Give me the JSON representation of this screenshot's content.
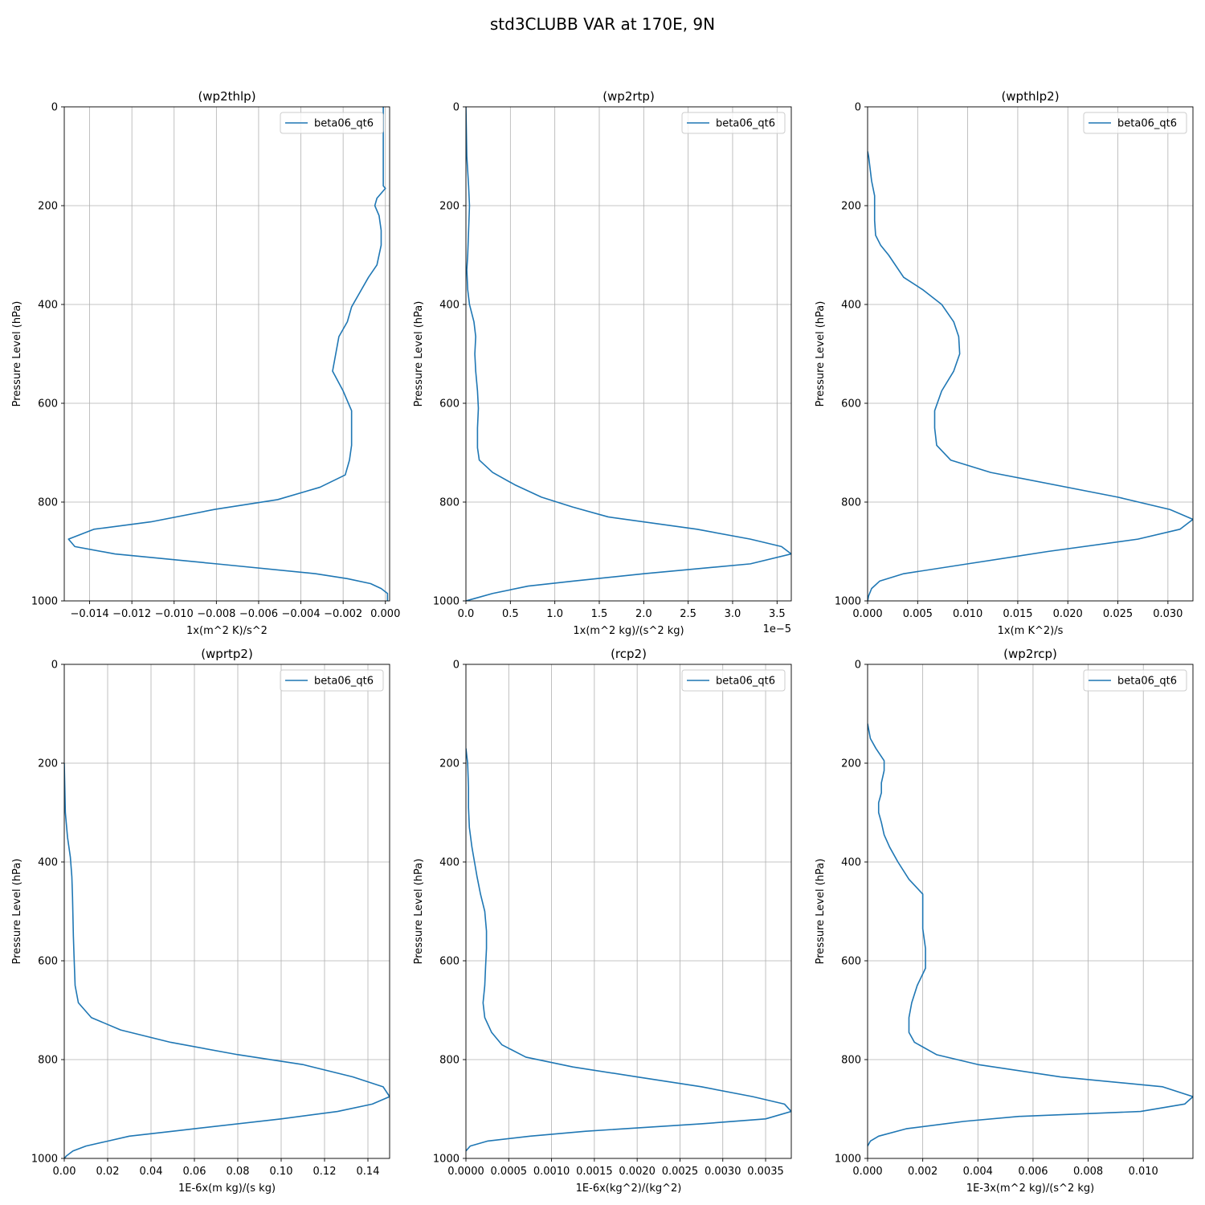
{
  "figure": {
    "title": "std3CLUBB VAR at 170E, 9N",
    "series_color": "#1f77b4"
  },
  "chart_data": [
    {
      "type": "line",
      "title": "(wp2thlp)",
      "xlabel": "1x(m^2 K)/s^2",
      "ylabel": "Pressure Level (hPa)",
      "xlim": [
        -0.0152,
        0.0002
      ],
      "ylim": [
        1000,
        0
      ],
      "y_inverted": true,
      "grid": true,
      "legend": "top-right",
      "x_ticks": [
        -0.014,
        -0.012,
        -0.01,
        -0.008,
        -0.006,
        -0.004,
        -0.002,
        0.0
      ],
      "x_tick_labels": [
        "−0.014",
        "−0.012",
        "−0.010",
        "−0.008",
        "−0.006",
        "−0.004",
        "−0.002",
        "0.000"
      ],
      "y_ticks": [
        0,
        200,
        400,
        600,
        800,
        1000
      ],
      "y_tick_labels": [
        "0",
        "200",
        "400",
        "600",
        "800",
        "1000"
      ],
      "offset_label": "",
      "series": [
        {
          "name": "beta06_qt6",
          "x": [
            -0.0001,
            -0.0001,
            -0.0001,
            -0.0001,
            -0.0001,
            -0.0001,
            0.0,
            -0.0004,
            -0.0005,
            -0.0003,
            -0.0002,
            -0.0002,
            -0.0004,
            -0.0008,
            -0.0012,
            -0.0016,
            -0.0018,
            -0.0022,
            -0.0025,
            -0.002,
            -0.0016,
            -0.0016,
            -0.0016,
            -0.0017,
            -0.0019,
            -0.0031,
            -0.0051,
            -0.0081,
            -0.0111,
            -0.0138,
            -0.015,
            -0.0147,
            -0.0128,
            -0.008,
            -0.0033,
            -0.0018,
            -0.0007,
            -0.0002,
            0.0001,
            0.0001
          ],
          "y": [
            0,
            50,
            100,
            120,
            140,
            160,
            165,
            185,
            200,
            220,
            250,
            280,
            320,
            345,
            375,
            405,
            435,
            465,
            535,
            575,
            615,
            650,
            685,
            715,
            745,
            770,
            795,
            815,
            840,
            855,
            875,
            890,
            905,
            925,
            945,
            955,
            965,
            975,
            985,
            1000
          ]
        }
      ]
    },
    {
      "type": "line",
      "title": "(wp2rtp)",
      "xlabel": "1x(m^2 kg)/(s^2 kg)",
      "ylabel": "Pressure Level (hPa)",
      "xlim": [
        0,
        3.66
      ],
      "ylim": [
        1000,
        0
      ],
      "y_inverted": true,
      "grid": true,
      "legend": "top-right",
      "x_ticks": [
        0,
        0.5,
        1.0,
        1.5,
        2.0,
        2.5,
        3.0,
        3.5
      ],
      "x_tick_labels": [
        "0.0",
        "0.5",
        "1.0",
        "1.5",
        "2.0",
        "2.5",
        "3.0",
        "3.5"
      ],
      "y_ticks": [
        0,
        200,
        400,
        600,
        800,
        1000
      ],
      "y_tick_labels": [
        "0",
        "200",
        "400",
        "600",
        "800",
        "1000"
      ],
      "offset_label": "1e−5",
      "series": [
        {
          "name": "beta06_qt6",
          "x": [
            0.0,
            0.01,
            0.03,
            0.04,
            0.03,
            0.02,
            0.01,
            0.02,
            0.04,
            0.09,
            0.11,
            0.1,
            0.11,
            0.13,
            0.14,
            0.13,
            0.13,
            0.15,
            0.3,
            0.55,
            0.85,
            1.2,
            1.6,
            2.6,
            3.2,
            3.55,
            3.66,
            3.2,
            2.0,
            1.2,
            0.7,
            0.3,
            0.1,
            0.0
          ],
          "y": [
            0,
            100,
            160,
            200,
            250,
            300,
            330,
            370,
            400,
            435,
            465,
            500,
            535,
            575,
            610,
            650,
            690,
            715,
            740,
            765,
            790,
            810,
            830,
            855,
            875,
            890,
            905,
            925,
            945,
            960,
            970,
            985,
            995,
            1000
          ]
        }
      ]
    },
    {
      "type": "line",
      "title": "(wpthlp2)",
      "xlabel": "1x(m K^2)/s",
      "ylabel": "Pressure Level (hPa)",
      "xlim": [
        0,
        0.0325
      ],
      "ylim": [
        1000,
        0
      ],
      "y_inverted": true,
      "grid": true,
      "legend": "top-right",
      "x_ticks": [
        0.0,
        0.005,
        0.01,
        0.015,
        0.02,
        0.025,
        0.03
      ],
      "x_tick_labels": [
        "0.000",
        "0.005",
        "0.010",
        "0.015",
        "0.020",
        "0.025",
        "0.030"
      ],
      "y_ticks": [
        0,
        200,
        400,
        600,
        800,
        1000
      ],
      "y_tick_labels": [
        "0",
        "200",
        "400",
        "600",
        "800",
        "1000"
      ],
      "offset_label": "",
      "series": [
        {
          "name": "beta06_qt6",
          "x": [
            0.0,
            0.0001,
            0.0004,
            0.0007,
            0.0007,
            0.0007,
            0.0008,
            0.0013,
            0.0021,
            0.0036,
            0.0055,
            0.0074,
            0.0086,
            0.0091,
            0.0092,
            0.0086,
            0.0074,
            0.0067,
            0.0067,
            0.0069,
            0.0083,
            0.0123,
            0.025,
            0.0302,
            0.0325,
            0.0312,
            0.027,
            0.018,
            0.01,
            0.0036,
            0.0012,
            0.0004,
            0.0001,
            0.0
          ],
          "y": [
            90,
            100,
            150,
            180,
            200,
            230,
            260,
            280,
            300,
            345,
            370,
            400,
            435,
            465,
            500,
            535,
            575,
            615,
            650,
            685,
            715,
            740,
            790,
            815,
            835,
            855,
            875,
            900,
            925,
            945,
            960,
            975,
            990,
            1000
          ]
        }
      ]
    },
    {
      "type": "line",
      "title": "(wprtp2)",
      "xlabel": "1E-6x(m kg)/(s kg)",
      "ylabel": "Pressure Level (hPa)",
      "xlim": [
        0,
        0.15
      ],
      "ylim": [
        1000,
        0
      ],
      "y_inverted": true,
      "grid": true,
      "legend": "top-right",
      "x_ticks": [
        0.0,
        0.02,
        0.04,
        0.06,
        0.08,
        0.1,
        0.12,
        0.14
      ],
      "x_tick_labels": [
        "0.00",
        "0.02",
        "0.04",
        "0.06",
        "0.08",
        "0.10",
        "0.12",
        "0.14"
      ],
      "y_ticks": [
        0,
        200,
        400,
        600,
        800,
        1000
      ],
      "y_tick_labels": [
        "0",
        "200",
        "400",
        "600",
        "800",
        "1000"
      ],
      "offset_label": "",
      "series": [
        {
          "name": "beta06_qt6",
          "x": [
            0.0,
            0.0005,
            0.0015,
            0.0028,
            0.0035,
            0.0038,
            0.004,
            0.0042,
            0.0045,
            0.005,
            0.0065,
            0.0125,
            0.026,
            0.049,
            0.08,
            0.11,
            0.133,
            0.147,
            0.15,
            0.142,
            0.126,
            0.1,
            0.05,
            0.03,
            0.02,
            0.01,
            0.004,
            0.001,
            0.0
          ],
          "y": [
            200,
            300,
            350,
            390,
            430,
            470,
            510,
            550,
            590,
            650,
            685,
            715,
            740,
            765,
            790,
            810,
            835,
            855,
            875,
            890,
            905,
            920,
            945,
            955,
            965,
            975,
            985,
            995,
            1000
          ]
        }
      ]
    },
    {
      "type": "line",
      "title": "(rcp2)",
      "xlabel": "1E-6x(kg^2)/(kg^2)",
      "ylabel": "Pressure Level (hPa)",
      "xlim": [
        0,
        0.0038
      ],
      "ylim": [
        1000,
        0
      ],
      "y_inverted": true,
      "grid": true,
      "legend": "top-right",
      "x_ticks": [
        0.0,
        0.0005,
        0.001,
        0.0015,
        0.002,
        0.0025,
        0.003,
        0.0035
      ],
      "x_tick_labels": [
        "0.0000",
        "0.0005",
        "0.0010",
        "0.0015",
        "0.0020",
        "0.0025",
        "0.0030",
        "0.0035"
      ],
      "y_ticks": [
        0,
        200,
        400,
        600,
        800,
        1000
      ],
      "y_tick_labels": [
        "0",
        "200",
        "400",
        "600",
        "800",
        "1000"
      ],
      "offset_label": "",
      "series": [
        {
          "name": "beta06_qt6",
          "x": [
            0.0,
            2e-05,
            3e-05,
            3e-05,
            4e-05,
            7e-05,
            0.0001,
            0.00013,
            0.00017,
            0.00022,
            0.00024,
            0.00024,
            0.00023,
            0.00022,
            0.0002,
            0.00022,
            0.0003,
            0.00042,
            0.0007,
            0.00125,
            0.002,
            0.00275,
            0.00335,
            0.00372,
            0.0038,
            0.0035,
            0.00275,
            0.0014,
            0.00075,
            0.00025,
            5e-05,
            0.0
          ],
          "y": [
            170,
            200,
            250,
            290,
            330,
            370,
            400,
            430,
            465,
            500,
            540,
            575,
            610,
            650,
            685,
            715,
            745,
            770,
            795,
            815,
            835,
            855,
            875,
            890,
            905,
            920,
            930,
            945,
            955,
            965,
            975,
            985
          ]
        }
      ]
    },
    {
      "type": "line",
      "title": "(wp2rcp)",
      "xlabel": "1E-3x(m^2 kg)/(s^2 kg)",
      "ylabel": "Pressure Level (hPa)",
      "xlim": [
        0,
        0.0118
      ],
      "ylim": [
        1000,
        0
      ],
      "y_inverted": true,
      "grid": true,
      "legend": "top-right",
      "x_ticks": [
        0.0,
        0.002,
        0.004,
        0.006,
        0.008,
        0.01
      ],
      "x_tick_labels": [
        "0.000",
        "0.002",
        "0.004",
        "0.006",
        "0.008",
        "0.010"
      ],
      "y_ticks": [
        0,
        200,
        400,
        600,
        800,
        1000
      ],
      "y_tick_labels": [
        "0",
        "200",
        "400",
        "600",
        "800",
        "1000"
      ],
      "offset_label": "",
      "series": [
        {
          "name": "beta06_qt6",
          "x": [
            0.0,
            0.0001,
            0.0003,
            0.0006,
            0.0006,
            0.0005,
            0.0005,
            0.0004,
            0.0004,
            0.0005,
            0.0006,
            0.0008,
            0.0011,
            0.0015,
            0.002,
            0.002,
            0.002,
            0.0021,
            0.0021,
            0.0018,
            0.0016,
            0.0015,
            0.0015,
            0.0017,
            0.0025,
            0.004,
            0.007,
            0.0107,
            0.0118,
            0.0115,
            0.0099,
            0.0055,
            0.0035,
            0.0014,
            0.0004,
            0.0001,
            0.0
          ],
          "y": [
            120,
            150,
            170,
            195,
            215,
            240,
            260,
            280,
            300,
            320,
            345,
            370,
            400,
            435,
            465,
            500,
            535,
            575,
            615,
            650,
            685,
            715,
            745,
            765,
            790,
            810,
            835,
            855,
            875,
            890,
            905,
            915,
            925,
            940,
            955,
            965,
            975
          ]
        }
      ]
    }
  ]
}
